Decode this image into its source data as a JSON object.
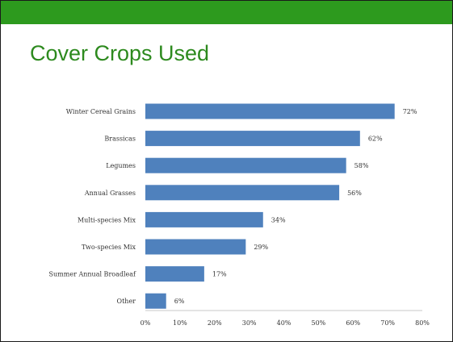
{
  "slide": {
    "title": "Cover Crops Used",
    "accent_color": "#2d9a1e",
    "title_color": "#2d8a1e"
  },
  "chart_data": {
    "type": "bar",
    "orientation": "horizontal",
    "categories": [
      "Winter Cereal Grains",
      "Brassicas",
      "Legumes",
      "Annual Grasses",
      "Multi-species Mix",
      "Two-species Mix",
      "Summer Annual Broadleaf",
      "Other"
    ],
    "values": [
      72,
      62,
      58,
      56,
      34,
      29,
      17,
      6
    ],
    "value_labels": [
      "72%",
      "62%",
      "58%",
      "56%",
      "34%",
      "29%",
      "17%",
      "6%"
    ],
    "xlim": [
      0,
      80
    ],
    "x_ticks": [
      0,
      10,
      20,
      30,
      40,
      50,
      60,
      70,
      80
    ],
    "x_tick_labels": [
      "0%",
      "10%",
      "20%",
      "30%",
      "40%",
      "50%",
      "60%",
      "70%",
      "80%"
    ],
    "bar_color": "#4f81bd",
    "grid": false,
    "legend": "none"
  }
}
